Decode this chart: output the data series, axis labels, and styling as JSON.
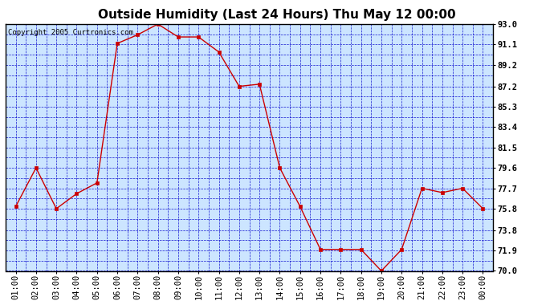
{
  "title": "Outside Humidity (Last 24 Hours) Thu May 12 00:00",
  "copyright": "Copyright 2005 Curtronics.com",
  "x_labels": [
    "01:00",
    "02:00",
    "03:00",
    "04:00",
    "05:00",
    "06:00",
    "07:00",
    "08:00",
    "09:00",
    "10:00",
    "11:00",
    "12:00",
    "13:00",
    "14:00",
    "15:00",
    "16:00",
    "17:00",
    "18:00",
    "19:00",
    "20:00",
    "21:00",
    "22:00",
    "23:00",
    "00:00"
  ],
  "y_values": [
    76.0,
    79.6,
    75.8,
    77.2,
    78.2,
    91.2,
    92.0,
    93.0,
    91.8,
    91.8,
    90.4,
    87.2,
    87.4,
    79.6,
    76.0,
    72.0,
    72.0,
    72.0,
    70.0,
    72.0,
    77.7,
    77.3,
    77.7,
    75.8
  ],
  "line_color": "#cc0000",
  "marker_color": "#cc0000",
  "bg_color": "#cce5ff",
  "outer_bg": "#ffffff",
  "grid_color": "#0000cc",
  "title_color": "#000000",
  "ylim_min": 70.0,
  "ylim_max": 93.0,
  "ytick_values": [
    70.0,
    71.9,
    73.8,
    75.8,
    77.7,
    79.6,
    81.5,
    83.4,
    85.3,
    87.2,
    89.2,
    91.1,
    93.0
  ],
  "title_fontsize": 11,
  "copyright_fontsize": 6.5,
  "tick_fontsize": 7.5,
  "border_color": "#000000"
}
